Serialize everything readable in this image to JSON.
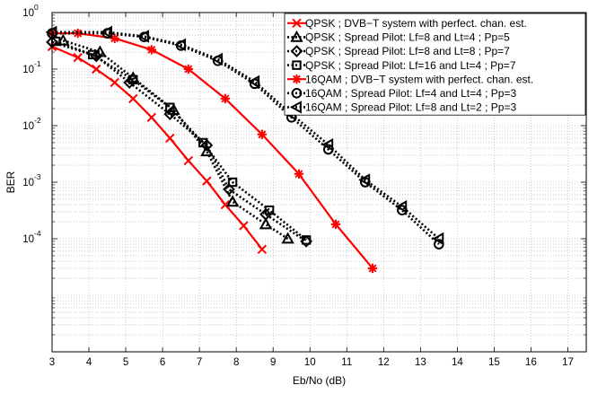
{
  "chart_data": {
    "type": "line",
    "title": "",
    "xlabel": "Eb/No (dB)",
    "ylabel": "BER",
    "xlim": [
      3,
      17.5
    ],
    "ylim": [
      1e-06,
      1
    ],
    "yscale": "log",
    "x_ticks": [
      "3",
      "4",
      "5",
      "6",
      "7",
      "8",
      "9",
      "10",
      "11",
      "12",
      "13",
      "14",
      "15",
      "16",
      "17"
    ],
    "y_ticks": [
      {
        "base": "10",
        "exp": "0"
      },
      {
        "base": "10",
        "exp": "-1"
      },
      {
        "base": "10",
        "exp": "-2"
      },
      {
        "base": "10",
        "exp": "-3"
      },
      {
        "base": "10",
        "exp": "-4"
      }
    ],
    "grid": true,
    "legend_position": "top-right",
    "series": [
      {
        "name": "QPSK ; DVB−T system with perfect. chan. est.",
        "color": "#ff0000",
        "dash": "solid",
        "marker": "x",
        "x": [
          3,
          3.7,
          4.2,
          4.7,
          5.2,
          5.7,
          6.2,
          6.7,
          7.2,
          7.7,
          8.2,
          8.7
        ],
        "y": [
          0.25,
          0.16,
          0.1,
          0.058,
          0.03,
          0.014,
          0.006,
          0.0024,
          0.00105,
          0.0004,
          0.00017,
          6.5e-05
        ]
      },
      {
        "name": "QPSK ; Spread Pilot: Lf=8 and Lt=4 ; Pp=5",
        "color": "#000000",
        "dash": "dotted",
        "marker": "triangle",
        "x": [
          3.3,
          4.3,
          5.2,
          6.3,
          7.2,
          7.9,
          8.8,
          9.4
        ],
        "y": [
          0.32,
          0.2,
          0.07,
          0.019,
          0.0035,
          0.00045,
          0.00018,
          0.0001
        ]
      },
      {
        "name": "QPSK ; Spread Pilot: Lf=8 and Lt=8 ; Pp=7",
        "color": "#000000",
        "dash": "dotted",
        "marker": "diamond",
        "x": [
          3,
          4.2,
          5.1,
          6.2,
          7.2,
          7.8,
          8.8,
          9.9
        ],
        "y": [
          0.3,
          0.17,
          0.058,
          0.016,
          0.0045,
          0.00075,
          0.00027,
          9e-05
        ]
      },
      {
        "name": "QPSK ; Spread Pilot: Lf=16 and Lt=4 ; Pp=7",
        "color": "#000000",
        "dash": "dotted",
        "marker": "square",
        "x": [
          3.1,
          4.1,
          5.2,
          6.2,
          7.1,
          7.9,
          8.9,
          9.9
        ],
        "y": [
          0.31,
          0.18,
          0.065,
          0.021,
          0.005,
          0.001,
          0.00032,
          9.5e-05
        ]
      },
      {
        "name": "16QAM ; DVB−T system with perfect. chan. est.",
        "color": "#ff0000",
        "dash": "solid",
        "marker": "asterisk",
        "x": [
          3,
          3.7,
          4.7,
          5.7,
          6.7,
          7.7,
          8.7,
          9.7,
          10.7,
          11.7
        ],
        "y": [
          0.43,
          0.43,
          0.35,
          0.22,
          0.1,
          0.03,
          0.007,
          0.0014,
          0.00018,
          3e-05
        ]
      },
      {
        "name": "16QAM ; Spread Pilot: Lf=4 and Lt=4 ; Pp=3",
        "color": "#000000",
        "dash": "dotted",
        "marker": "circle",
        "x": [
          3,
          4.5,
          5.5,
          6.5,
          7.5,
          8.5,
          9.5,
          10.5,
          11.5,
          12.5,
          13.5
        ],
        "y": [
          0.43,
          0.43,
          0.37,
          0.26,
          0.14,
          0.055,
          0.014,
          0.0038,
          0.001,
          0.00032,
          8e-05
        ]
      },
      {
        "name": "16QAM ; Spread Pilot: Lf=8 and Lt=2 ; Pp=3",
        "color": "#000000",
        "dash": "dotted",
        "marker": "triangle-left",
        "x": [
          3,
          4.5,
          5.5,
          6.5,
          7.5,
          8.5,
          9.5,
          10.5,
          11.5,
          12.5,
          13.5
        ],
        "y": [
          0.45,
          0.45,
          0.38,
          0.27,
          0.15,
          0.06,
          0.016,
          0.0046,
          0.0011,
          0.00037,
          0.0001
        ]
      }
    ]
  }
}
